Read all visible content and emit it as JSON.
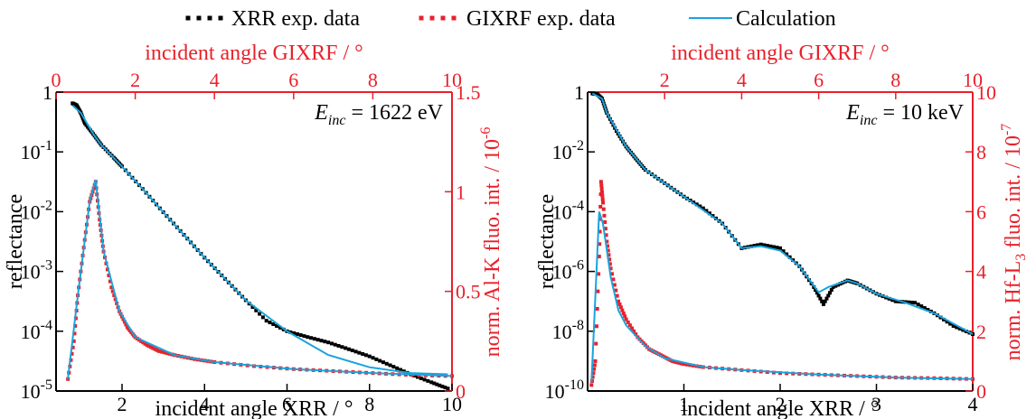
{
  "legend": [
    {
      "label": "XRR exp. data",
      "color": "#000000",
      "style": "dotted"
    },
    {
      "label": "GIXRF exp. data",
      "color": "#e8212b",
      "style": "dotted"
    },
    {
      "label": "Calculation",
      "color": "#1aa3dc",
      "style": "line"
    }
  ],
  "colors": {
    "xrr": "#000000",
    "gixrf": "#e8212b",
    "calc": "#1aa3dc"
  },
  "chart_data": [
    {
      "type": "line",
      "energy_prefix": "E",
      "energy_sub": "inc",
      "energy_value": " = 1622 eV",
      "xlabel": "incident angle XRR / °",
      "x2label": "incident angle GIXRF / °",
      "ylabel": "reflectance",
      "y2label": "norm. Al-K  fluo. int. / 10",
      "y2label_exp": "-6",
      "xlim": [
        0.4,
        10
      ],
      "x2lim": [
        0,
        10
      ],
      "ylim": [
        1e-05,
        1
      ],
      "ylog": true,
      "y2lim": [
        0,
        1.5
      ],
      "xticks": [
        "2",
        "4",
        "6",
        "8",
        "10"
      ],
      "x2ticks": [
        "0",
        "2",
        "4",
        "6",
        "8",
        "10"
      ],
      "yticks": [
        {
          "base": "1",
          "exp": ""
        },
        {
          "base": "10",
          "exp": "-1"
        },
        {
          "base": "10",
          "exp": "-2"
        },
        {
          "base": "10",
          "exp": "-3"
        },
        {
          "base": "10",
          "exp": "-4"
        },
        {
          "base": "10",
          "exp": "-5"
        }
      ],
      "y2ticks": [
        "0",
        "0.5",
        "1",
        "1.5"
      ],
      "series": [
        {
          "name": "XRR exp. data",
          "axis": "left",
          "x": [
            0.8,
            0.9,
            1.0,
            1.1,
            1.3,
            1.5,
            1.8,
            2.0,
            2.5,
            3.0,
            3.5,
            4.0,
            4.5,
            5.0,
            5.5,
            6.0,
            6.5,
            7.0,
            7.5,
            8.0,
            8.5,
            9.0,
            9.5,
            9.9
          ],
          "y": [
            0.65,
            0.6,
            0.45,
            0.3,
            0.2,
            0.13,
            0.08,
            0.057,
            0.024,
            0.0098,
            0.0041,
            0.0017,
            0.00075,
            0.00033,
            0.00015,
            0.0001,
            8e-05,
            6.5e-05,
            5e-05,
            3.8e-05,
            2.7e-05,
            1.9e-05,
            1.4e-05,
            1.1e-05
          ]
        },
        {
          "name": "GIXRF exp. data",
          "axis": "right",
          "x": [
            0.3,
            0.45,
            0.55,
            0.7,
            0.85,
            1.0,
            1.1,
            1.2,
            1.4,
            1.6,
            1.8,
            2.0,
            2.3,
            2.6,
            3.0,
            3.5,
            4.0,
            5.0,
            6.0,
            7.0,
            8.0,
            9.0,
            10.0
          ],
          "y": [
            0.06,
            0.25,
            0.48,
            0.72,
            0.95,
            1.05,
            0.86,
            0.7,
            0.52,
            0.4,
            0.32,
            0.27,
            0.23,
            0.2,
            0.18,
            0.16,
            0.145,
            0.125,
            0.11,
            0.1,
            0.09,
            0.08,
            0.075
          ]
        },
        {
          "name": "Calculation",
          "axis": "left",
          "x": [
            0.8,
            1.0,
            1.3,
            1.5,
            2.0,
            2.5,
            3.0,
            4.0,
            5.0,
            6.0,
            7.0,
            8.0,
            9.0,
            9.9
          ],
          "y": [
            0.6,
            0.45,
            0.2,
            0.13,
            0.057,
            0.024,
            0.0098,
            0.0017,
            0.00033,
            0.0001,
            4e-05,
            2.5e-05,
            2e-05,
            1.9e-05
          ]
        },
        {
          "name": "Calculation",
          "axis": "right",
          "x": [
            0.3,
            0.55,
            0.85,
            1.0,
            1.2,
            1.6,
            2.0,
            3.0,
            4.0,
            6.0,
            8.0,
            10.0
          ],
          "y": [
            0.06,
            0.48,
            0.95,
            1.06,
            0.7,
            0.4,
            0.27,
            0.18,
            0.145,
            0.11,
            0.09,
            0.075
          ]
        }
      ]
    },
    {
      "type": "line",
      "energy_prefix": "E",
      "energy_sub": "inc",
      "energy_value": " = 10 keV",
      "xlabel": "incident angle XRR / °",
      "x2label": "incident angle GIXRF / °",
      "ylabel": "reflectance",
      "y2label": "norm. Hf-L",
      "y2label_sub": "3",
      "y2label_rest": "  fluo. int. / 10",
      "y2label_exp": "-7",
      "xlim": [
        0,
        4
      ],
      "x2lim": [
        0,
        10
      ],
      "ylim": [
        1e-10,
        1
      ],
      "ylog": true,
      "y2lim": [
        0,
        10
      ],
      "xticks": [
        "1",
        "2",
        "3",
        "4"
      ],
      "x2ticks": [
        "2",
        "4",
        "6",
        "8",
        "10"
      ],
      "yticks": [
        {
          "base": "1",
          "exp": ""
        },
        {
          "base": "10",
          "exp": "-2"
        },
        {
          "base": "10",
          "exp": "-4"
        },
        {
          "base": "10",
          "exp": "-6"
        },
        {
          "base": "10",
          "exp": "-8"
        },
        {
          "base": "10",
          "exp": "-10"
        }
      ],
      "y2ticks": [
        "0",
        "2",
        "4",
        "6",
        "8",
        "10"
      ],
      "series": [
        {
          "name": "XRR exp. data",
          "axis": "left",
          "x": [
            0.05,
            0.1,
            0.15,
            0.2,
            0.3,
            0.4,
            0.5,
            0.6,
            0.8,
            1.0,
            1.2,
            1.4,
            1.6,
            1.8,
            2.0,
            2.2,
            2.35,
            2.45,
            2.55,
            2.7,
            2.8,
            3.0,
            3.2,
            3.4,
            3.6,
            3.8,
            4.0
          ],
          "y": [
            0.9,
            0.85,
            0.6,
            0.2,
            0.05,
            0.015,
            0.006,
            0.0025,
            0.0009,
            0.00032,
            0.00013,
            4e-05,
            6e-06,
            8e-06,
            6e-06,
            1.5e-06,
            3e-07,
            8e-08,
            3e-07,
            5e-07,
            4e-07,
            1.8e-07,
            1e-07,
            9e-08,
            4e-08,
            1.5e-08,
            8e-09
          ]
        },
        {
          "name": "GIXRF exp. data",
          "axis": "right",
          "x": [
            0.1,
            0.2,
            0.3,
            0.35,
            0.4,
            0.5,
            0.6,
            0.8,
            1.0,
            1.3,
            1.6,
            1.9,
            2.2,
            2.5,
            3.0,
            4.0,
            5.0,
            6.0,
            7.0,
            8.0,
            9.0,
            10.0
          ],
          "y": [
            0.2,
            1.0,
            4.5,
            7.0,
            6.3,
            5.0,
            4.1,
            3.0,
            2.4,
            1.8,
            1.4,
            1.2,
            1.0,
            0.9,
            0.8,
            0.7,
            0.6,
            0.55,
            0.5,
            0.45,
            0.43,
            0.4
          ]
        },
        {
          "name": "Calculation",
          "axis": "left",
          "x": [
            0.05,
            0.15,
            0.2,
            0.4,
            0.6,
            1.0,
            1.4,
            1.6,
            1.8,
            2.0,
            2.2,
            2.4,
            2.5,
            2.7,
            2.8,
            3.0,
            3.3,
            3.6,
            4.0
          ],
          "y": [
            0.9,
            0.6,
            0.2,
            0.015,
            0.0025,
            0.00032,
            4e-05,
            6e-06,
            7e-06,
            5e-06,
            1.5e-06,
            2e-07,
            3e-07,
            5e-07,
            4e-07,
            1.8e-07,
            9e-08,
            4e-08,
            8e-09
          ]
        },
        {
          "name": "Calculation",
          "axis": "right",
          "x": [
            0.1,
            0.3,
            0.4,
            0.6,
            0.8,
            1.0,
            1.5,
            2.0,
            3.0,
            4.0,
            6.0,
            8.0,
            10.0
          ],
          "y": [
            0.3,
            6.0,
            5.6,
            3.8,
            2.7,
            2.2,
            1.5,
            1.1,
            0.8,
            0.7,
            0.55,
            0.45,
            0.4
          ]
        }
      ]
    }
  ]
}
